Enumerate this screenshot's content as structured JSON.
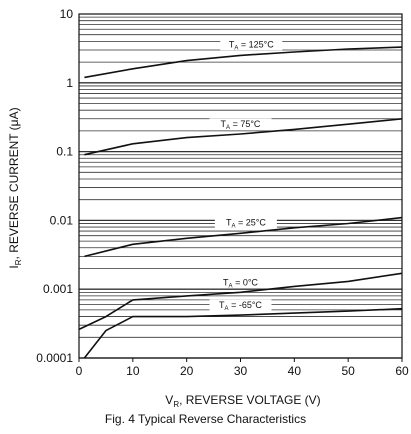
{
  "chart_data": {
    "type": "line",
    "title": "Fig. 4 Typical Reverse Characteristics",
    "xlabel_main": "V",
    "xlabel_sub": "R",
    "xlabel_rest": ", REVERSE VOLTAGE (V)",
    "ylabel_main": "I",
    "ylabel_sub": "R",
    "ylabel_rest": ", REVERSE CURRENT (μA)",
    "xlim": [
      0,
      60
    ],
    "ylim": [
      0.0001,
      10
    ],
    "yscale": "log",
    "grid": true,
    "x_ticks": [
      "0",
      "10",
      "20",
      "30",
      "40",
      "50",
      "60"
    ],
    "y_ticks": [
      "0.0001",
      "0.001",
      "0.01",
      "0.1",
      "1",
      "10"
    ],
    "series": [
      {
        "name_pre": "T",
        "name_sub": "A",
        "name_post": " = 125°C",
        "x": [
          1,
          10,
          20,
          30,
          40,
          50,
          60
        ],
        "y": [
          1.2,
          1.6,
          2.1,
          2.5,
          2.8,
          3.1,
          3.3
        ]
      },
      {
        "name_pre": "T",
        "name_sub": "A",
        "name_post": " = 75°C",
        "x": [
          1,
          10,
          20,
          30,
          40,
          50,
          60
        ],
        "y": [
          0.09,
          0.13,
          0.16,
          0.18,
          0.21,
          0.25,
          0.3
        ]
      },
      {
        "name_pre": "T",
        "name_sub": "A",
        "name_post": " = 25°C",
        "x": [
          1,
          10,
          20,
          30,
          40,
          50,
          60
        ],
        "y": [
          0.003,
          0.0045,
          0.0055,
          0.0065,
          0.0078,
          0.009,
          0.011
        ]
      },
      {
        "name_pre": "T",
        "name_sub": "A",
        "name_post": " = 0°C",
        "x": [
          0,
          5,
          10,
          20,
          30,
          40,
          50,
          60
        ],
        "y": [
          0.00026,
          0.0004,
          0.0007,
          0.0008,
          0.0009,
          0.0011,
          0.0013,
          0.0017
        ]
      },
      {
        "name_pre": "T",
        "name_sub": "A",
        "name_post": " = -65°C",
        "x": [
          1,
          5,
          10,
          20,
          30,
          40,
          50,
          60
        ],
        "y": [
          0.0001,
          0.00025,
          0.0004,
          0.0004,
          0.00042,
          0.00045,
          0.00048,
          0.00052
        ]
      }
    ]
  }
}
